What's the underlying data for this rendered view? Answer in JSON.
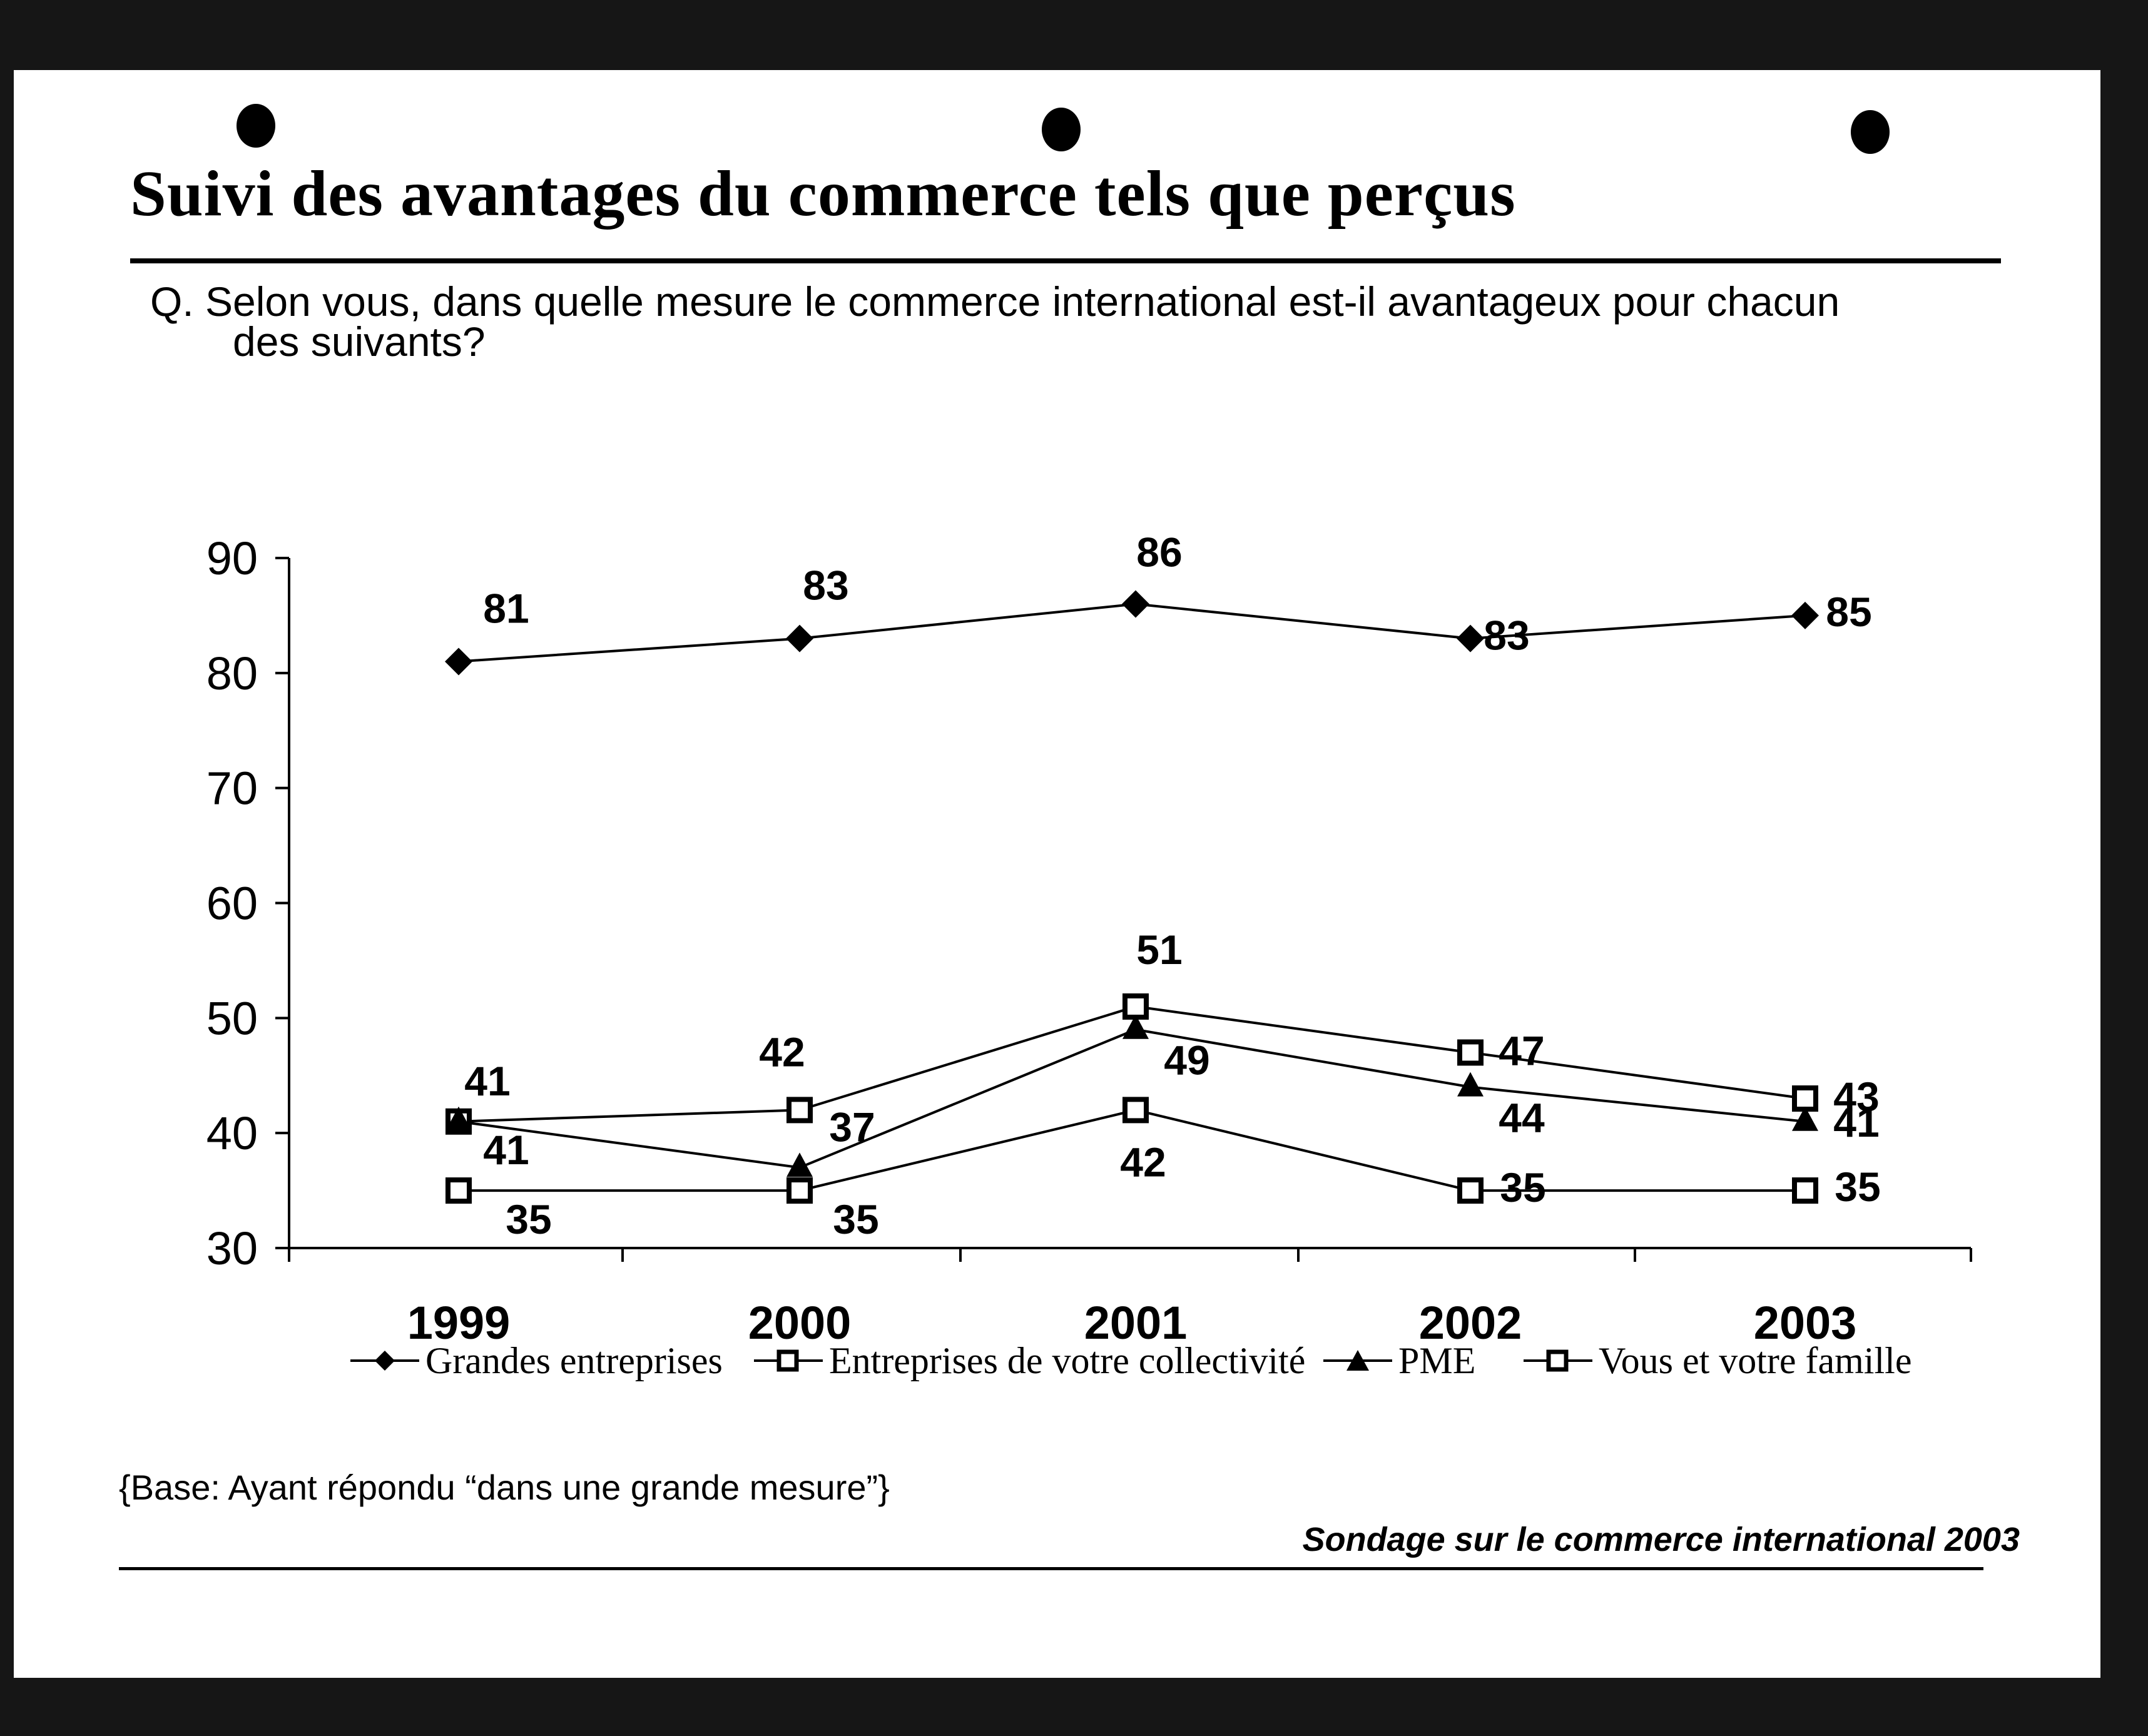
{
  "title": "Suivi des avantages du commerce tels que perçus",
  "question": {
    "line1": "Q.  Selon vous, dans quelle mesure le commerce international est-il avantageux pour chacun",
    "line2": "des suivants?"
  },
  "base_note": "{Base: Ayant répondu “dans une grande mesure”}",
  "source": "Sondage sur le commerce international 2003",
  "chart_data": {
    "type": "line",
    "categories": [
      "1999",
      "2000",
      "2001",
      "2002",
      "2003"
    ],
    "ylim": [
      30,
      90
    ],
    "yticks": [
      90,
      80,
      70,
      60,
      50,
      40,
      30
    ],
    "grid": false,
    "legend_position": "bottom",
    "series": [
      {
        "name": "Grandes entreprises",
        "marker": "diamond",
        "values": [
          81,
          83,
          86,
          83,
          85
        ],
        "labels": [
          "81",
          "83",
          "86",
          "83",
          "85"
        ]
      },
      {
        "name": "Entreprises de votre collectivité",
        "marker": "square",
        "values": [
          41,
          42,
          51,
          47,
          43
        ],
        "labels": [
          "41",
          "42",
          "51",
          "47",
          "43"
        ]
      },
      {
        "name": "PME",
        "marker": "triangle",
        "values": [
          41,
          37,
          49,
          44,
          41
        ],
        "labels": [
          "41",
          "37",
          "49",
          "44",
          "41"
        ]
      },
      {
        "name": "Vous et votre famille",
        "marker": "square",
        "values": [
          35,
          35,
          42,
          35,
          35
        ],
        "labels": [
          "35",
          "35",
          "42",
          "35",
          "35"
        ]
      }
    ]
  }
}
